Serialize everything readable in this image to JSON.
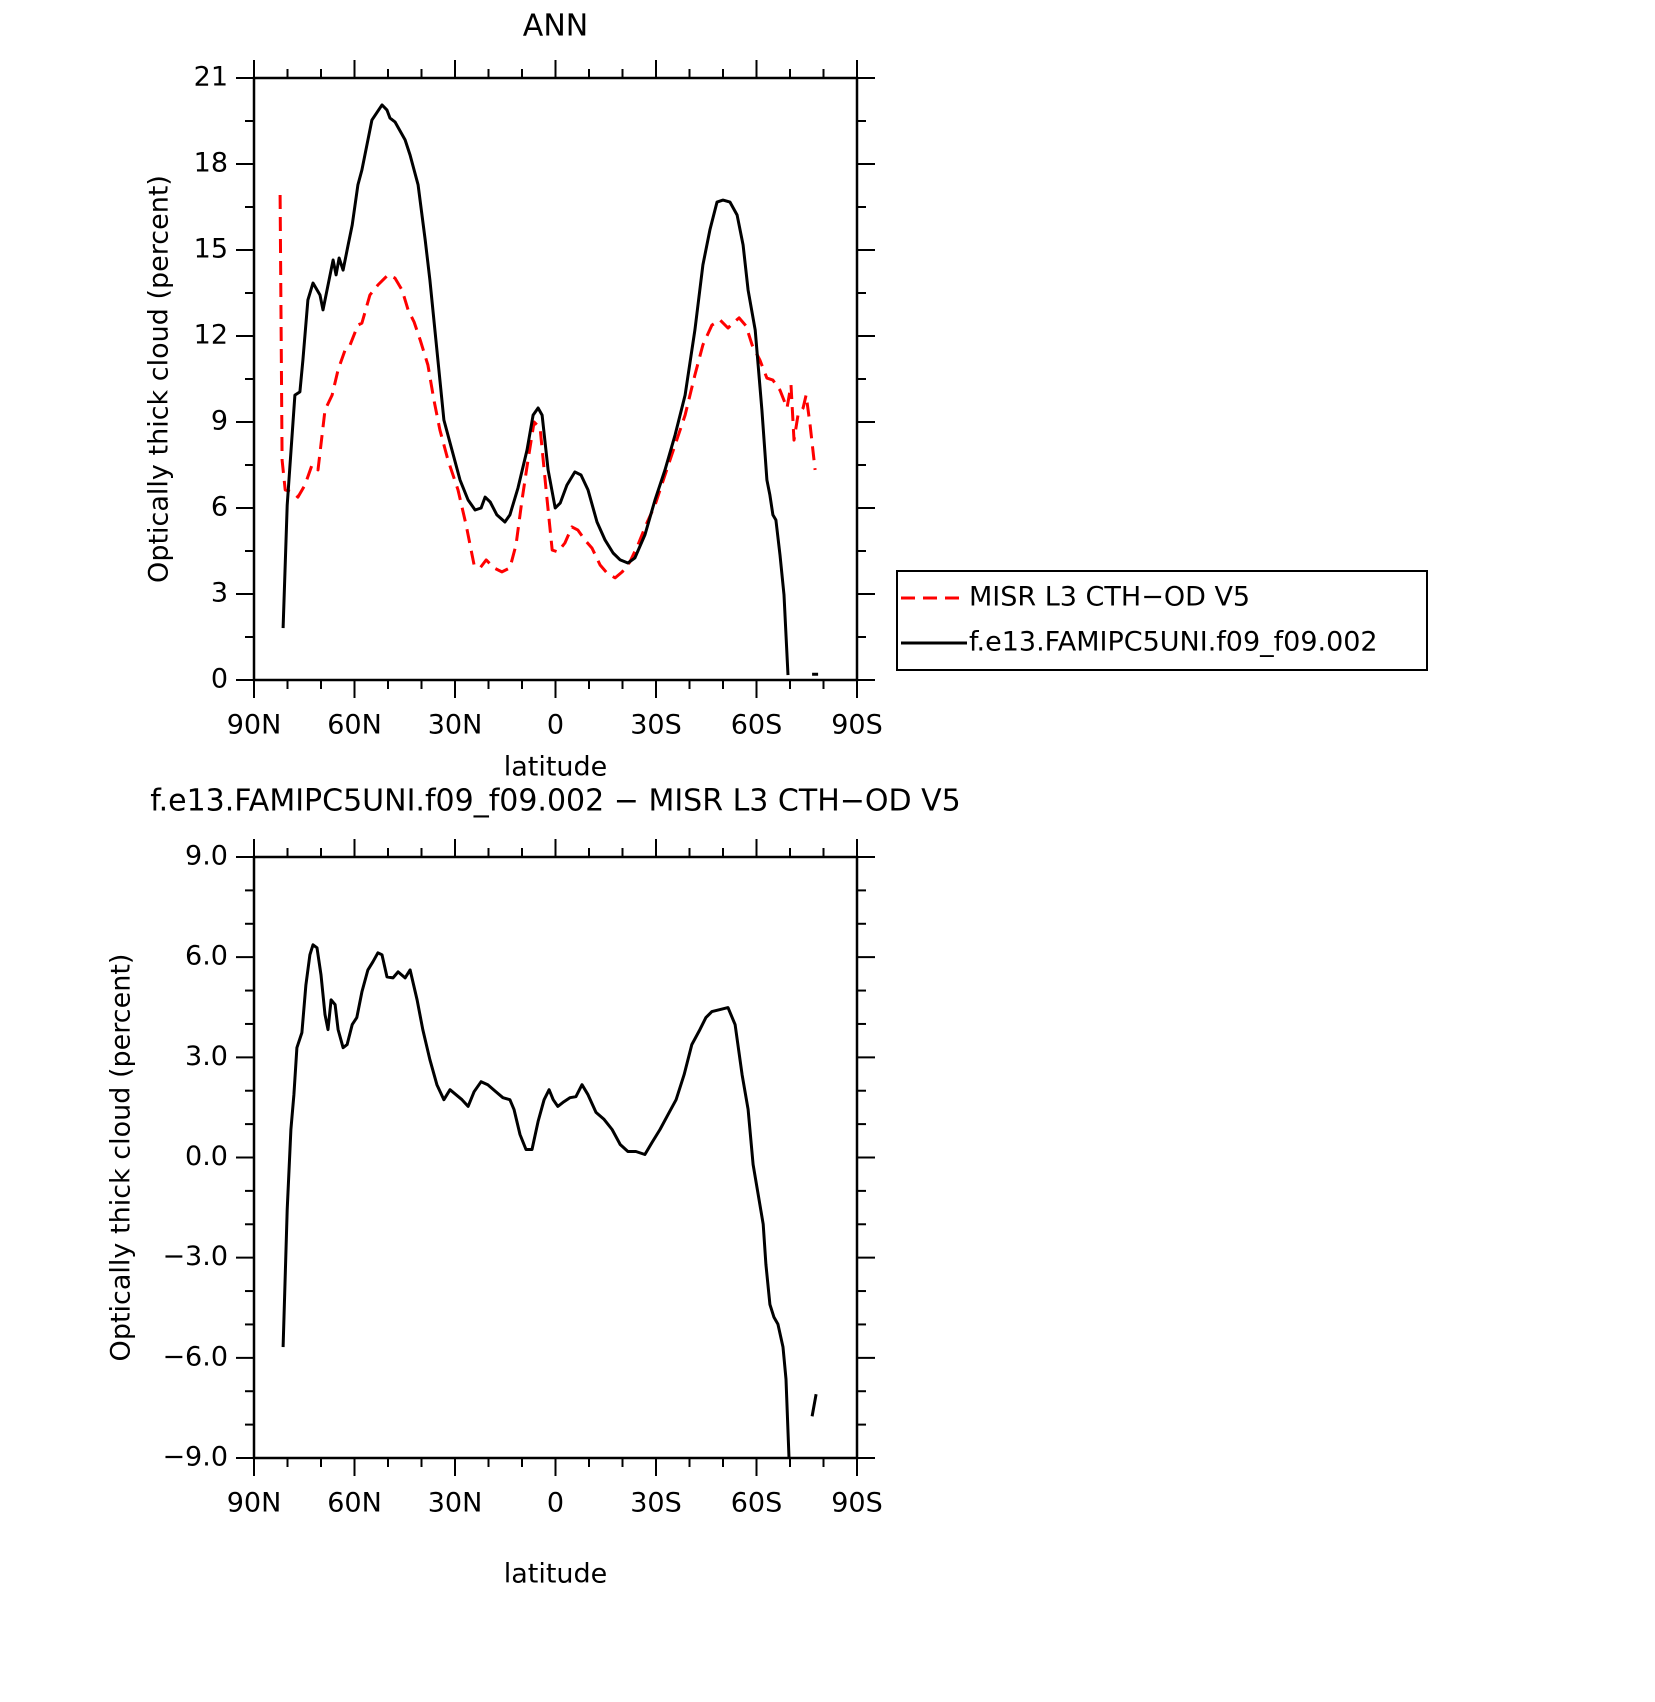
{
  "chart_data": [
    {
      "type": "line",
      "title": "ANN",
      "xlabel": "latitude",
      "ylabel": "Optically thick cloud (percent)",
      "xlim": [
        90,
        -90
      ],
      "xticks": [
        {
          "value": 90,
          "label": "90N"
        },
        {
          "value": 60,
          "label": "60N"
        },
        {
          "value": 30,
          "label": "30N"
        },
        0,
        {
          "value": -30,
          "label": "30S"
        },
        {
          "value": -60,
          "label": "60S"
        },
        {
          "value": -90,
          "label": "90S"
        }
      ],
      "ylim": [
        0,
        21
      ],
      "yticks": [
        0,
        3,
        6,
        9,
        12,
        15,
        18,
        21
      ],
      "legend": "right",
      "series": [
        {
          "name": "MISR L3 CTH−OD V5",
          "color": "#ff0000",
          "style": "dashed",
          "x": [
            82.2,
            81.6,
            80.7,
            78.7,
            76.9,
            74.8,
            72.7,
            70.9,
            68.8,
            66.7,
            64.9,
            62.8,
            61.3,
            59.0,
            57.8,
            55.4,
            53.0,
            50.0,
            47.9,
            45.8,
            44.0,
            42.2,
            40.4,
            38.1,
            36.3,
            34.5,
            32.1,
            29.1,
            26.7,
            24.3,
            22.5,
            20.7,
            18.4,
            16.0,
            13.6,
            11.8,
            10.0,
            8.2,
            6.4,
            4.6,
            2.8,
            1.0,
            -0.7,
            -2.8,
            -4.9,
            -6.7,
            -8.8,
            -10.9,
            -13.3,
            -15.4,
            -17.8,
            -19.9,
            -22.2,
            -24.6,
            -27.0,
            -29.7,
            -32.7,
            -35.7,
            -38.7,
            -41.6,
            -44.0,
            -46.7,
            -49.1,
            -51.5,
            -53.0,
            -54.8,
            -56.9,
            -58.7,
            -61.0,
            -63.1,
            -64.9,
            -67.0,
            -69.1,
            -70.3,
            -71.2,
            -72.4,
            -73.9,
            -74.8,
            -76.0,
            -77.5
          ],
          "values": [
            16.92,
            7.67,
            6.63,
            6.56,
            6.38,
            6.8,
            7.5,
            7.33,
            9.42,
            9.94,
            10.82,
            11.51,
            11.69,
            12.38,
            12.45,
            13.43,
            13.78,
            14.13,
            14.02,
            13.6,
            12.91,
            12.49,
            11.86,
            10.99,
            9.77,
            8.72,
            7.67,
            6.63,
            5.41,
            4.01,
            3.91,
            4.19,
            3.91,
            3.77,
            3.91,
            4.71,
            6.28,
            7.67,
            9.0,
            8.79,
            6.63,
            4.53,
            4.47,
            4.78,
            5.34,
            5.23,
            4.88,
            4.6,
            4.01,
            3.73,
            3.56,
            3.77,
            4.12,
            4.71,
            5.41,
            6.1,
            7.15,
            8.2,
            9.24,
            10.64,
            11.69,
            12.38,
            12.56,
            12.28,
            12.45,
            12.63,
            12.35,
            11.69,
            11.16,
            10.53,
            10.46,
            10.11,
            9.49,
            10.29,
            8.37,
            9.24,
            9.49,
            9.94,
            8.9,
            7.33
          ]
        },
        {
          "name": "f.e13.FAMIPC5UNI.f09_f09.002",
          "color": "#000000",
          "style": "solid",
          "x": [
            81.3,
            80.1,
            77.8,
            76.3,
            75.4,
            73.9,
            72.4,
            70.3,
            69.4,
            66.4,
            65.5,
            64.6,
            63.4,
            61.9,
            60.7,
            59.0,
            57.8,
            54.8,
            51.8,
            50.3,
            49.4,
            47.9,
            44.9,
            43.4,
            41.0,
            38.9,
            37.5,
            35.7,
            33.3,
            30.9,
            28.5,
            26.1,
            24.0,
            22.2,
            21.0,
            19.5,
            17.5,
            15.1,
            13.6,
            11.2,
            8.5,
            6.7,
            5.2,
            4.0,
            2.2,
            0.1,
            -1.4,
            -3.4,
            -5.8,
            -7.6,
            -9.7,
            -12.4,
            -14.8,
            -17.2,
            -19.3,
            -21.6,
            -23.7,
            -26.7,
            -29.7,
            -32.7,
            -35.7,
            -38.7,
            -41.6,
            -44.0,
            -46.1,
            -48.2,
            -50.0,
            -52.1,
            -54.2,
            -56.0,
            -57.5,
            -59.6,
            -61.6,
            -63.1,
            -64.0,
            -64.9,
            -65.8,
            -67.0,
            -68.2,
            -69.4,
            null,
            -76.6,
            -78.4
          ],
          "values": [
            1.81,
            6.1,
            9.94,
            10.05,
            11.16,
            13.26,
            13.85,
            13.43,
            12.91,
            14.65,
            14.13,
            14.72,
            14.3,
            15.17,
            15.87,
            17.27,
            17.79,
            19.53,
            20.06,
            19.88,
            19.6,
            19.47,
            18.84,
            18.31,
            17.27,
            15.35,
            13.95,
            11.86,
            9.07,
            8.02,
            6.98,
            6.28,
            5.93,
            6.0,
            6.38,
            6.21,
            5.76,
            5.51,
            5.76,
            6.7,
            8.02,
            9.24,
            9.49,
            9.24,
            7.33,
            6.0,
            6.17,
            6.8,
            7.26,
            7.15,
            6.63,
            5.51,
            4.88,
            4.43,
            4.19,
            4.08,
            4.26,
            5.06,
            6.28,
            7.33,
            8.55,
            9.94,
            12.21,
            14.48,
            15.7,
            16.67,
            16.74,
            16.67,
            16.22,
            15.17,
            13.6,
            12.21,
            9.42,
            6.98,
            6.45,
            5.76,
            5.58,
            4.36,
            2.97,
            0.17,
            null,
            0.2,
            0.2
          ]
        }
      ]
    },
    {
      "type": "line",
      "title": "f.e13.FAMIPC5UNI.f09_f09.002 − MISR L3 CTH−OD V5",
      "xlabel": "latitude",
      "ylabel": "Optically thick cloud (percent)",
      "xlim": [
        90,
        -90
      ],
      "xticks": [
        {
          "value": 90,
          "label": "90N"
        },
        {
          "value": 60,
          "label": "60N"
        },
        {
          "value": 30,
          "label": "30N"
        },
        0,
        {
          "value": -30,
          "label": "30S"
        },
        {
          "value": -60,
          "label": "60S"
        },
        {
          "value": -90,
          "label": "90S"
        }
      ],
      "ylim": [
        -9,
        9
      ],
      "yticks": [
        {
          "value": -9,
          "label": "−9.0"
        },
        {
          "value": -6,
          "label": "−6.0"
        },
        {
          "value": -3,
          "label": "−3.0"
        },
        {
          "value": 0,
          "label": "0.0"
        },
        {
          "value": 3,
          "label": "3.0"
        },
        {
          "value": 6,
          "label": "6.0"
        },
        {
          "value": 9,
          "label": "9.0"
        }
      ],
      "series": [
        {
          "color": "#000000",
          "style": "solid",
          "x": [
            81.3,
            80.1,
            79.0,
            78.1,
            77.2,
            75.7,
            74.5,
            73.3,
            72.4,
            71.2,
            70.0,
            68.8,
            67.9,
            67.0,
            65.8,
            64.9,
            63.4,
            62.2,
            60.7,
            59.3,
            57.8,
            56.0,
            54.5,
            53.0,
            51.8,
            50.3,
            48.5,
            47.0,
            44.9,
            43.4,
            41.3,
            39.6,
            37.5,
            35.4,
            33.3,
            31.5,
            29.7,
            27.9,
            26.1,
            24.3,
            22.2,
            20.2,
            17.8,
            15.7,
            13.6,
            12.4,
            10.6,
            8.8,
            7.0,
            5.2,
            3.4,
            1.9,
            0.7,
            -0.7,
            -2.5,
            -4.3,
            -6.1,
            -7.9,
            -9.7,
            -12.1,
            -14.5,
            -16.9,
            -19.3,
            -21.6,
            -24.0,
            -26.7,
            -28.8,
            -31.2,
            -33.6,
            -36.0,
            -38.4,
            -40.7,
            -43.1,
            -44.9,
            -46.7,
            -49.1,
            -51.5,
            -53.6,
            -55.7,
            -57.5,
            -59.0,
            -60.5,
            -62.0,
            -62.8,
            -64.0,
            -65.2,
            -66.4,
            -67.9,
            -68.8,
            -69.7,
            null,
            -76.6,
            -77.8
          ],
          "values": [
            -5.68,
            -1.56,
            0.84,
            1.88,
            3.29,
            3.74,
            5.17,
            6.07,
            6.37,
            6.28,
            5.47,
            4.28,
            3.83,
            4.72,
            4.58,
            3.83,
            3.29,
            3.38,
            3.98,
            4.19,
            4.96,
            5.62,
            5.86,
            6.13,
            6.07,
            5.41,
            5.38,
            5.56,
            5.38,
            5.62,
            4.72,
            3.83,
            2.93,
            2.18,
            1.73,
            2.03,
            1.88,
            1.73,
            1.53,
            1.97,
            2.27,
            2.18,
            1.97,
            1.79,
            1.73,
            1.44,
            0.69,
            0.24,
            0.24,
            1.08,
            1.73,
            2.03,
            1.73,
            1.53,
            1.67,
            1.79,
            1.82,
            2.18,
            1.88,
            1.35,
            1.14,
            0.84,
            0.39,
            0.18,
            0.18,
            0.09,
            0.45,
            0.84,
            1.29,
            1.73,
            2.48,
            3.38,
            3.83,
            4.19,
            4.37,
            4.43,
            4.49,
            3.98,
            2.48,
            1.44,
            -0.21,
            -1.11,
            -2.0,
            -3.2,
            -4.4,
            -4.78,
            -4.99,
            -5.68,
            -6.64,
            -8.99,
            null,
            -7.75,
            -7.09
          ]
        }
      ]
    }
  ]
}
